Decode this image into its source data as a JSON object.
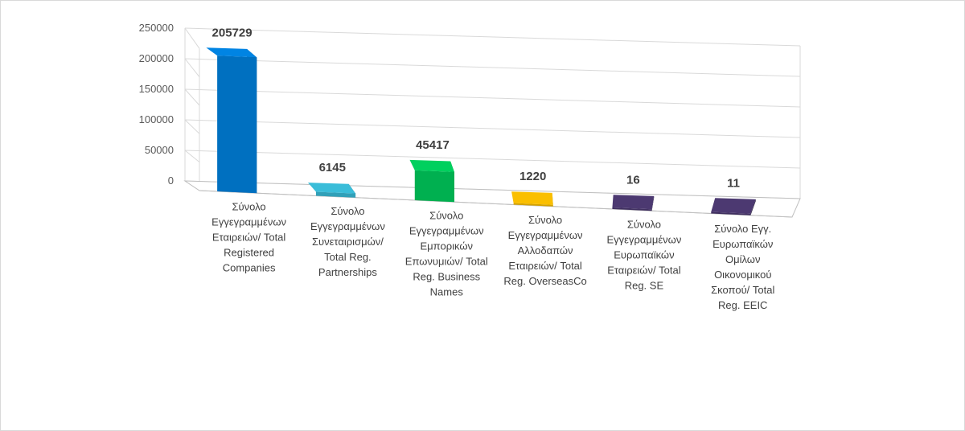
{
  "chart_data": {
    "type": "bar",
    "title": "",
    "xlabel": "",
    "ylabel": "",
    "ylim": [
      0,
      250000
    ],
    "yticks": [
      0,
      50000,
      100000,
      150000,
      200000,
      250000
    ],
    "grid": true,
    "legend": "none",
    "categories": [
      "Σύνολο Εγγεγραμμένων Εταιρειών/ Total Registered Companies",
      "Σύνολο Εγγεγραμμένων Συνεταιρισμών/ Total Reg. Partnerships",
      "Σύνολο Εγγεγραμμένων Εμπορικών Επωνυμιών/ Total Reg. Business Names",
      "Σύνολο Εγγεγραμμένων Αλλοδαπών Εταιρειών/ Total Reg. OverseasCo",
      "Σύνολο Εγγεγραμμένων Ευρωπαϊκών Εταιρειών/ Total Reg. SE",
      "Σύνολο Εγγ. Ευρωπαϊκών Ομίλων Οικονομικού Σκοπού/ Total Reg. EEIC"
    ],
    "category_lines": [
      [
        "Σύνολο",
        "Εγγεγραμμένων",
        "Εταιρειών/ Total",
        "Registered",
        "Companies"
      ],
      [
        "Σύνολο",
        "Εγγεγραμμένων",
        "Συνεταιρισμών/",
        "Total Reg.",
        "Partnerships"
      ],
      [
        "Σύνολο",
        "Εγγεγραμμένων",
        "Εμπορικών",
        "Επωνυμιών/ Total",
        "Reg. Business",
        "Names"
      ],
      [
        "Σύνολο",
        "Εγγεγραμμένων",
        "Αλλοδαπών",
        "Εταιρειών/ Total",
        "Reg. OverseasCo"
      ],
      [
        "Σύνολο",
        "Εγγεγραμμένων",
        "Ευρωπαϊκών",
        "Εταιρειών/ Total",
        "Reg. SE"
      ],
      [
        "Σύνολο Εγγ.",
        "Ευρωπαϊκών",
        "Ομίλων",
        "Οικονομικού",
        "Σκοπού/ Total",
        "Reg. EEIC"
      ]
    ],
    "values": [
      205729,
      6145,
      45417,
      1220,
      16,
      11
    ],
    "data_labels": [
      "205729",
      "6145",
      "45417",
      "1220",
      "16",
      "11"
    ],
    "colors": [
      "#0070c0",
      "#31a0b8",
      "#00b050",
      "#d4a200",
      "#403060",
      "#403060"
    ]
  }
}
